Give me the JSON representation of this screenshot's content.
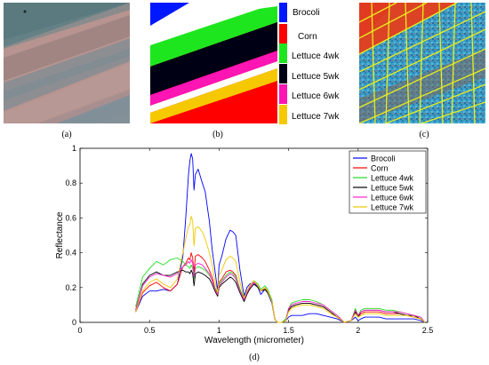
{
  "captions": {
    "a": "(a)",
    "b": "(b)",
    "c": "(c)",
    "d": "(d)"
  },
  "class_legend": [
    {
      "label": "Brocoli",
      "color": "#0018ff"
    },
    {
      "label": "Corn",
      "color": "#ff0000"
    },
    {
      "label": "Lettuce 4wk",
      "color": "#1ee61e"
    },
    {
      "label": "Lettuce 5wk",
      "color": "#000014"
    },
    {
      "label": "Lettuce 6wk",
      "color": "#ff14b4"
    },
    {
      "label": "Lettuce 7wk",
      "color": "#f5c800"
    }
  ],
  "chart_data": {
    "type": "line",
    "title": "",
    "xlabel": "Wavelength (micrometer)",
    "ylabel": "Reflectance",
    "xlim": [
      0,
      2.5
    ],
    "ylim": [
      0,
      1
    ],
    "xticks": [
      "0",
      "0.5",
      "1",
      "1.5",
      "2",
      "2.5"
    ],
    "yticks": [
      "0",
      "0.2",
      "0.4",
      "0.6",
      "0.8",
      "1"
    ],
    "legend_position": "top-right",
    "x": [
      0.4,
      0.45,
      0.5,
      0.55,
      0.6,
      0.65,
      0.7,
      0.74,
      0.76,
      0.78,
      0.79,
      0.8,
      0.81,
      0.82,
      0.83,
      0.85,
      0.88,
      0.9,
      0.93,
      0.95,
      0.97,
      0.99,
      1.0,
      1.02,
      1.05,
      1.08,
      1.1,
      1.12,
      1.15,
      1.18,
      1.2,
      1.22,
      1.25,
      1.28,
      1.3,
      1.33,
      1.35,
      1.38,
      1.4,
      1.42,
      1.45,
      1.48,
      1.5,
      1.52,
      1.55,
      1.6,
      1.65,
      1.7,
      1.75,
      1.8,
      1.85,
      1.9,
      1.95,
      1.98,
      2.0,
      2.02,
      2.05,
      2.1,
      2.15,
      2.2,
      2.25,
      2.3,
      2.35,
      2.4,
      2.45,
      2.48
    ],
    "series": [
      {
        "name": "Brocoli",
        "color": "#0000ff",
        "values": [
          0.06,
          0.15,
          0.18,
          0.18,
          0.19,
          0.18,
          0.22,
          0.38,
          0.6,
          0.85,
          0.93,
          0.97,
          0.94,
          0.76,
          0.85,
          0.88,
          0.8,
          0.75,
          0.58,
          0.42,
          0.3,
          0.18,
          0.33,
          0.38,
          0.48,
          0.53,
          0.52,
          0.5,
          0.3,
          0.15,
          0.2,
          0.22,
          0.23,
          0.2,
          0.16,
          0.19,
          0.17,
          0.11,
          0.02,
          0.0,
          0.0,
          0.01,
          0.03,
          0.04,
          0.04,
          0.04,
          0.05,
          0.05,
          0.04,
          0.03,
          0.02,
          0.0,
          0.01,
          0.03,
          0.01,
          0.02,
          0.03,
          0.03,
          0.03,
          0.02,
          0.02,
          0.02,
          0.02,
          0.02,
          0.01,
          0.0
        ]
      },
      {
        "name": "Corn",
        "color": "#ff0000",
        "values": [
          0.06,
          0.17,
          0.21,
          0.23,
          0.2,
          0.18,
          0.22,
          0.32,
          0.34,
          0.37,
          0.36,
          0.4,
          0.37,
          0.29,
          0.38,
          0.39,
          0.37,
          0.35,
          0.3,
          0.26,
          0.2,
          0.16,
          0.23,
          0.25,
          0.29,
          0.3,
          0.29,
          0.27,
          0.19,
          0.13,
          0.17,
          0.2,
          0.23,
          0.21,
          0.18,
          0.19,
          0.18,
          0.12,
          0.02,
          0.0,
          0.0,
          0.01,
          0.07,
          0.09,
          0.1,
          0.11,
          0.11,
          0.1,
          0.09,
          0.06,
          0.03,
          0.0,
          0.01,
          0.06,
          0.03,
          0.05,
          0.06,
          0.06,
          0.06,
          0.05,
          0.05,
          0.05,
          0.04,
          0.03,
          0.02,
          0.0
        ]
      },
      {
        "name": "Lettuce 4wk",
        "color": "#22dd22",
        "values": [
          0.09,
          0.26,
          0.31,
          0.35,
          0.33,
          0.36,
          0.37,
          0.35,
          0.33,
          0.32,
          0.31,
          0.33,
          0.31,
          0.25,
          0.31,
          0.32,
          0.31,
          0.3,
          0.27,
          0.24,
          0.2,
          0.17,
          0.22,
          0.24,
          0.27,
          0.29,
          0.28,
          0.26,
          0.19,
          0.14,
          0.18,
          0.21,
          0.24,
          0.22,
          0.19,
          0.21,
          0.19,
          0.13,
          0.02,
          0.0,
          0.0,
          0.02,
          0.08,
          0.11,
          0.12,
          0.13,
          0.13,
          0.12,
          0.1,
          0.07,
          0.04,
          0.0,
          0.01,
          0.08,
          0.04,
          0.07,
          0.08,
          0.08,
          0.08,
          0.07,
          0.07,
          0.06,
          0.05,
          0.04,
          0.03,
          0.0
        ]
      },
      {
        "name": "Lettuce 5wk",
        "color": "#000000",
        "values": [
          0.07,
          0.22,
          0.27,
          0.29,
          0.27,
          0.27,
          0.29,
          0.3,
          0.29,
          0.29,
          0.28,
          0.3,
          0.28,
          0.21,
          0.28,
          0.29,
          0.28,
          0.27,
          0.25,
          0.22,
          0.18,
          0.15,
          0.2,
          0.22,
          0.24,
          0.26,
          0.25,
          0.23,
          0.17,
          0.12,
          0.16,
          0.19,
          0.22,
          0.2,
          0.18,
          0.19,
          0.17,
          0.12,
          0.02,
          0.0,
          0.0,
          0.01,
          0.07,
          0.09,
          0.1,
          0.11,
          0.11,
          0.1,
          0.09,
          0.06,
          0.03,
          0.0,
          0.01,
          0.06,
          0.03,
          0.06,
          0.07,
          0.07,
          0.07,
          0.06,
          0.06,
          0.05,
          0.04,
          0.04,
          0.02,
          0.0
        ]
      },
      {
        "name": "Lettuce 6wk",
        "color": "#ff22cc",
        "values": [
          0.07,
          0.21,
          0.26,
          0.28,
          0.27,
          0.26,
          0.28,
          0.32,
          0.33,
          0.35,
          0.34,
          0.36,
          0.34,
          0.26,
          0.33,
          0.34,
          0.33,
          0.31,
          0.28,
          0.24,
          0.19,
          0.16,
          0.21,
          0.23,
          0.26,
          0.28,
          0.27,
          0.25,
          0.18,
          0.13,
          0.17,
          0.2,
          0.23,
          0.21,
          0.18,
          0.2,
          0.18,
          0.12,
          0.02,
          0.0,
          0.0,
          0.01,
          0.08,
          0.1,
          0.11,
          0.12,
          0.12,
          0.11,
          0.1,
          0.07,
          0.04,
          0.0,
          0.01,
          0.07,
          0.04,
          0.06,
          0.07,
          0.07,
          0.07,
          0.06,
          0.06,
          0.06,
          0.05,
          0.04,
          0.03,
          0.0
        ]
      },
      {
        "name": "Lettuce 7wk",
        "color": "#f0c800",
        "values": [
          0.06,
          0.18,
          0.23,
          0.25,
          0.22,
          0.2,
          0.25,
          0.4,
          0.48,
          0.55,
          0.56,
          0.61,
          0.58,
          0.44,
          0.54,
          0.55,
          0.52,
          0.48,
          0.4,
          0.33,
          0.24,
          0.17,
          0.27,
          0.3,
          0.36,
          0.38,
          0.37,
          0.35,
          0.23,
          0.14,
          0.18,
          0.21,
          0.24,
          0.21,
          0.18,
          0.2,
          0.18,
          0.12,
          0.02,
          0.0,
          0.0,
          0.01,
          0.06,
          0.08,
          0.09,
          0.1,
          0.1,
          0.09,
          0.08,
          0.05,
          0.03,
          0.0,
          0.01,
          0.05,
          0.03,
          0.04,
          0.05,
          0.05,
          0.05,
          0.04,
          0.04,
          0.04,
          0.04,
          0.03,
          0.02,
          0.0
        ]
      }
    ]
  }
}
